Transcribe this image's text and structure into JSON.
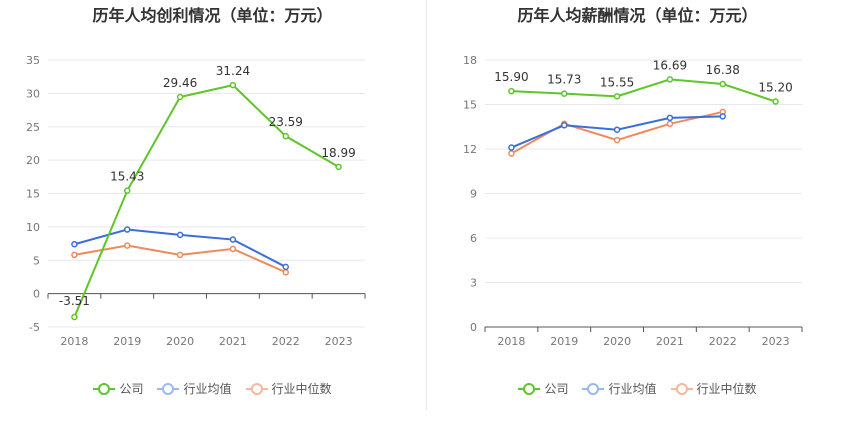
{
  "chart_data": [
    {
      "type": "line",
      "title": "历年人均创利情况（单位：万元）",
      "categories": [
        "2018",
        "2019",
        "2020",
        "2021",
        "2022",
        "2023"
      ],
      "yticks": [
        "-5",
        "0",
        "5",
        "10",
        "15",
        "20",
        "25",
        "30",
        "35"
      ],
      "ylim": [
        -5,
        35
      ],
      "series": [
        {
          "name": "公司",
          "color": "#5ec52b",
          "values": [
            -3.51,
            15.43,
            29.46,
            31.24,
            23.59,
            18.99
          ],
          "labels": [
            "-3.51",
            "15.43",
            "29.46",
            "31.24",
            "23.59",
            "18.99"
          ]
        },
        {
          "name": "行业均值",
          "color": "#3a6fd8",
          "values": [
            7.4,
            9.6,
            8.8,
            8.1,
            4.0,
            null
          ],
          "labels": []
        },
        {
          "name": "行业中位数",
          "color": "#ee8a5c",
          "values": [
            5.8,
            7.2,
            5.8,
            6.7,
            3.2,
            null
          ],
          "labels": []
        }
      ]
    },
    {
      "type": "line",
      "title": "历年人均薪酬情况（单位：万元）",
      "categories": [
        "2018",
        "2019",
        "2020",
        "2021",
        "2022",
        "2023"
      ],
      "yticks": [
        "0",
        "3",
        "6",
        "9",
        "12",
        "15",
        "18"
      ],
      "ylim": [
        0,
        18
      ],
      "series": [
        {
          "name": "公司",
          "color": "#5ec52b",
          "values": [
            15.9,
            15.73,
            15.55,
            16.69,
            16.38,
            15.2
          ],
          "labels": [
            "15.90",
            "15.73",
            "15.55",
            "16.69",
            "16.38",
            "15.20"
          ]
        },
        {
          "name": "行业均值",
          "color": "#3a6fd8",
          "values": [
            12.1,
            13.6,
            13.3,
            14.1,
            14.2,
            null
          ],
          "labels": []
        },
        {
          "name": "行业中位数",
          "color": "#ee8a5c",
          "values": [
            11.7,
            13.7,
            12.6,
            13.7,
            14.5,
            null
          ],
          "labels": []
        }
      ]
    }
  ],
  "legend_legend_color_light": {
    "公司": "#5ec52b",
    "行业均值": "#9bb8ee",
    "行业中位数": "#f5b89c"
  }
}
